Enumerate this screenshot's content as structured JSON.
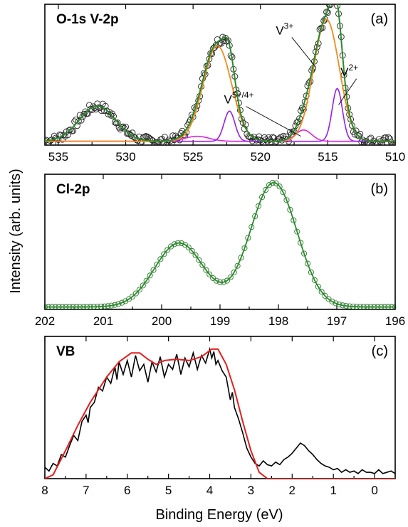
{
  "figure": {
    "ylabel": "Intensity (arb. units)",
    "xlabel": "Binding Energy (eV)"
  },
  "chart_data": [
    {
      "id": "a",
      "type": "line",
      "title": "O-1s V-2p",
      "tag": "(a)",
      "xlim": [
        536,
        510
      ],
      "ylim": [
        0,
        1.12
      ],
      "xticks": [
        "535",
        "530",
        "525",
        "520",
        "515",
        "510"
      ],
      "xtick_values": [
        535,
        530,
        525,
        520,
        515,
        510
      ],
      "colors": {
        "data": "#222222",
        "fit": "#2a8a2a",
        "v3": "#f08c1e",
        "v2": "#9a1ee6",
        "v54": "#e020e0"
      },
      "annotations": [
        {
          "base": "V",
          "sup": "3+",
          "text_x": 518.2,
          "text_y": 0.88,
          "arrow_to_x": 515.9,
          "arrow_to_y": 0.62
        },
        {
          "base": "V",
          "sup": "2+",
          "text_x": 513.4,
          "text_y": 0.55,
          "arrow_to_x": 514.2,
          "arrow_to_y": 0.32
        },
        {
          "base": "V",
          "sup": "5+/4+",
          "text_x": 521.6,
          "text_y": 0.33,
          "arrow_to_x": 517.0,
          "arrow_to_y": 0.07
        }
      ],
      "series": [
        {
          "key": "v54",
          "components": [
            {
              "c": 524.7,
              "a": 0.04,
              "w": 0.9
            },
            {
              "c": 516.8,
              "a": 0.09,
              "w": 0.6
            }
          ]
        },
        {
          "key": "v3",
          "components": [
            {
              "c": 523.2,
              "a": 0.76,
              "w": 1.05
            },
            {
              "c": 515.1,
              "a": 0.97,
              "w": 0.95
            }
          ]
        },
        {
          "key": "v2",
          "components": [
            {
              "c": 522.3,
              "a": 0.24,
              "w": 0.4
            },
            {
              "c": 514.3,
              "a": 0.42,
              "w": 0.38
            }
          ]
        },
        {
          "key": "o1s",
          "components": [
            {
              "c": 532.1,
              "a": 0.28,
              "w": 1.35
            }
          ]
        }
      ],
      "baseline": 0.03
    },
    {
      "id": "b",
      "type": "line",
      "title": "Cl-2p",
      "tag": "(b)",
      "xlim": [
        202,
        196
      ],
      "ylim": [
        0,
        1.12
      ],
      "xticks": [
        "202",
        "201",
        "200",
        "199",
        "198",
        "197",
        "196"
      ],
      "xtick_values": [
        202,
        201,
        200,
        199,
        198,
        197,
        196
      ],
      "colors": {
        "data": "#2a7a2a",
        "fit": "#2a8a2a"
      },
      "series": [
        {
          "key": "cl",
          "components": [
            {
              "c": 199.7,
              "a": 0.53,
              "w": 0.42
            },
            {
              "c": 198.08,
              "a": 1.03,
              "w": 0.4
            }
          ]
        }
      ],
      "baseline": 0.02
    },
    {
      "id": "c",
      "type": "line",
      "title": "VB",
      "tag": "(c)",
      "xlim": [
        8,
        -0.5
      ],
      "ylim": [
        0,
        1.12
      ],
      "xticks": [
        "8",
        "7",
        "6",
        "5",
        "4",
        "3",
        "2",
        "1",
        "0"
      ],
      "xtick_values": [
        8,
        7,
        6,
        5,
        4,
        3,
        2,
        1,
        0
      ],
      "colors": {
        "data": "#000000",
        "fit": "#e81c1c"
      },
      "fit_points": [
        [
          8,
          0.0
        ],
        [
          7.8,
          0.03
        ],
        [
          7.5,
          0.22
        ],
        [
          7.2,
          0.42
        ],
        [
          6.9,
          0.6
        ],
        [
          6.5,
          0.8
        ],
        [
          6.2,
          0.92
        ],
        [
          5.9,
          0.99
        ],
        [
          5.7,
          0.99
        ],
        [
          5.5,
          0.94
        ],
        [
          5.3,
          0.9
        ],
        [
          5.1,
          0.93
        ],
        [
          4.8,
          0.94
        ],
        [
          4.5,
          0.93
        ],
        [
          4.2,
          0.96
        ],
        [
          3.95,
          1.02
        ],
        [
          3.8,
          1.02
        ],
        [
          3.6,
          0.9
        ],
        [
          3.4,
          0.7
        ],
        [
          3.2,
          0.45
        ],
        [
          3.0,
          0.22
        ],
        [
          2.8,
          0.05
        ],
        [
          2.6,
          0.0
        ],
        [
          -0.5,
          0.0
        ]
      ],
      "data_points": [
        [
          8.0,
          0.09
        ],
        [
          7.9,
          0.06
        ],
        [
          7.8,
          0.12
        ],
        [
          7.7,
          0.1
        ],
        [
          7.6,
          0.19
        ],
        [
          7.5,
          0.17
        ],
        [
          7.4,
          0.26
        ],
        [
          7.3,
          0.34
        ],
        [
          7.2,
          0.3
        ],
        [
          7.1,
          0.45
        ],
        [
          7.0,
          0.5
        ],
        [
          6.95,
          0.44
        ],
        [
          6.9,
          0.56
        ],
        [
          6.8,
          0.6
        ],
        [
          6.7,
          0.72
        ],
        [
          6.6,
          0.69
        ],
        [
          6.5,
          0.8
        ],
        [
          6.4,
          0.75
        ],
        [
          6.3,
          0.88
        ],
        [
          6.25,
          0.78
        ],
        [
          6.2,
          0.92
        ],
        [
          6.1,
          0.82
        ],
        [
          6.0,
          0.93
        ],
        [
          5.9,
          0.8
        ],
        [
          5.8,
          0.97
        ],
        [
          5.7,
          0.85
        ],
        [
          5.6,
          0.9
        ],
        [
          5.5,
          0.76
        ],
        [
          5.4,
          0.92
        ],
        [
          5.3,
          0.84
        ],
        [
          5.2,
          0.96
        ],
        [
          5.1,
          0.8
        ],
        [
          5.0,
          0.9
        ],
        [
          4.9,
          0.86
        ],
        [
          4.8,
          0.98
        ],
        [
          4.7,
          0.82
        ],
        [
          4.6,
          0.95
        ],
        [
          4.5,
          0.88
        ],
        [
          4.4,
          0.99
        ],
        [
          4.3,
          0.86
        ],
        [
          4.2,
          0.97
        ],
        [
          4.1,
          0.91
        ],
        [
          4.0,
          1.02
        ],
        [
          3.95,
          0.95
        ],
        [
          3.9,
          1.0
        ],
        [
          3.85,
          0.9
        ],
        [
          3.8,
          0.93
        ],
        [
          3.7,
          0.85
        ],
        [
          3.6,
          0.8
        ],
        [
          3.5,
          0.62
        ],
        [
          3.45,
          0.68
        ],
        [
          3.4,
          0.56
        ],
        [
          3.3,
          0.47
        ],
        [
          3.2,
          0.36
        ],
        [
          3.1,
          0.24
        ],
        [
          3.0,
          0.17
        ],
        [
          2.9,
          0.12
        ],
        [
          2.8,
          0.1
        ],
        [
          2.7,
          0.14
        ],
        [
          2.6,
          0.11
        ],
        [
          2.5,
          0.1
        ],
        [
          2.4,
          0.13
        ],
        [
          2.3,
          0.11
        ],
        [
          2.2,
          0.15
        ],
        [
          2.1,
          0.17
        ],
        [
          2.0,
          0.2
        ],
        [
          1.9,
          0.24
        ],
        [
          1.8,
          0.28
        ],
        [
          1.7,
          0.26
        ],
        [
          1.6,
          0.22
        ],
        [
          1.5,
          0.19
        ],
        [
          1.4,
          0.15
        ],
        [
          1.3,
          0.12
        ],
        [
          1.2,
          0.1
        ],
        [
          1.1,
          0.09
        ],
        [
          1.0,
          0.07
        ],
        [
          0.9,
          0.08
        ],
        [
          0.8,
          0.05
        ],
        [
          0.7,
          0.07
        ],
        [
          0.6,
          0.05
        ],
        [
          0.5,
          0.06
        ],
        [
          0.4,
          0.04
        ],
        [
          0.3,
          0.07
        ],
        [
          0.2,
          0.05
        ],
        [
          0.1,
          0.05
        ],
        [
          0.0,
          0.04
        ],
        [
          -0.1,
          0.07
        ],
        [
          -0.2,
          0.04
        ],
        [
          -0.3,
          0.05
        ],
        [
          -0.4,
          0.06
        ],
        [
          -0.5,
          0.04
        ]
      ]
    }
  ]
}
